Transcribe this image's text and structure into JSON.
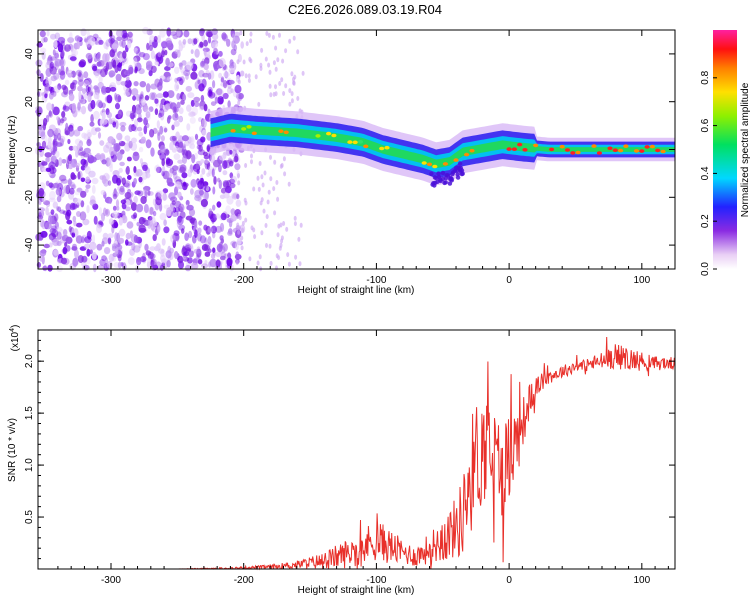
{
  "title": "C2E6.2026.089.03.19.R04",
  "colors": {
    "signal": "#e8302a",
    "frame": "#000000",
    "background": "#ffffff"
  },
  "chart_data": [
    {
      "type": "heatmap",
      "xlabel": "Height of straight line (km)",
      "ylabel": "Frequency (Hz)",
      "xlim": [
        -355,
        125
      ],
      "ylim": [
        -50,
        50
      ],
      "xticks": [
        -300,
        -200,
        -100,
        0,
        100
      ],
      "xtick_labels": [
        "-300",
        "-200",
        "-100",
        "0",
        "100"
      ],
      "yticks": [
        -40,
        -20,
        0,
        20,
        40
      ],
      "ytick_labels": [
        "-40",
        "-20",
        "0",
        "20",
        "40"
      ],
      "colorbar": {
        "label": "Normalized spectral amplitude",
        "range": [
          0.0,
          1.0
        ],
        "ticks": [
          0.0,
          0.2,
          0.4,
          0.6,
          0.8
        ],
        "tick_labels": [
          "0.0",
          "0.2",
          "0.4",
          "0.6",
          "0.8"
        ],
        "colormap": "rainbow (white-violet-blue-cyan-green-yellow-red-magenta)"
      },
      "ridge_center_hz": {
        "x": [
          -225,
          -210,
          -190,
          -160,
          -130,
          -110,
          -95,
          -80,
          -65,
          -55,
          -45,
          -35,
          -25,
          -15,
          -5,
          10,
          30,
          60,
          100,
          125
        ],
        "y": [
          7,
          9,
          8,
          7,
          5,
          3,
          0,
          -2,
          -4,
          -6,
          -5,
          -1,
          0,
          1,
          2,
          1,
          0,
          0,
          0,
          0
        ]
      },
      "noise_region_km": [
        -355,
        -205
      ]
    },
    {
      "type": "line",
      "xlabel": "Height of straight line (km)",
      "ylabel": "SNR (10 * v/v)",
      "yscale_label": "(x10",
      "yscale_exponent": "4",
      "xlim": [
        -355,
        125
      ],
      "ylim": [
        0,
        2.3
      ],
      "xticks": [
        -300,
        -200,
        -100,
        0,
        100
      ],
      "xtick_labels": [
        "-300",
        "-200",
        "-100",
        "0",
        "100"
      ],
      "yticks": [
        0.5,
        1.0,
        1.5,
        2.0
      ],
      "ytick_labels": [
        "0.5",
        "1.0",
        "1.5",
        "2.0"
      ],
      "series": [
        {
          "name": "SNR",
          "color": "#e8302a",
          "x": [
            -355,
            -300,
            -250,
            -205,
            -180,
            -160,
            -140,
            -120,
            -110,
            -100,
            -90,
            -80,
            -70,
            -60,
            -50,
            -40,
            -35,
            -30,
            -25,
            -20,
            -15,
            -10,
            -5,
            0,
            5,
            10,
            15,
            20,
            30,
            40,
            50,
            60,
            70,
            80,
            90,
            100,
            110,
            125
          ],
          "mean": [
            0.0,
            0.0,
            0.0,
            0.01,
            0.02,
            0.04,
            0.08,
            0.16,
            0.22,
            0.28,
            0.22,
            0.16,
            0.12,
            0.2,
            0.28,
            0.4,
            0.5,
            0.85,
            1.05,
            1.15,
            1.2,
            1.05,
            0.95,
            1.1,
            1.2,
            1.4,
            1.6,
            1.75,
            1.85,
            1.9,
            1.95,
            1.97,
            2.0,
            2.05,
            2.02,
            2.0,
            1.98,
            1.98
          ],
          "spread": [
            0.0,
            0.0,
            0.0,
            0.01,
            0.02,
            0.04,
            0.08,
            0.15,
            0.18,
            0.2,
            0.17,
            0.12,
            0.1,
            0.15,
            0.22,
            0.3,
            0.4,
            0.55,
            0.6,
            0.55,
            0.5,
            0.5,
            0.45,
            0.45,
            0.4,
            0.25,
            0.18,
            0.1,
            0.07,
            0.06,
            0.06,
            0.07,
            0.09,
            0.12,
            0.12,
            0.09,
            0.07,
            0.06
          ]
        }
      ]
    }
  ]
}
